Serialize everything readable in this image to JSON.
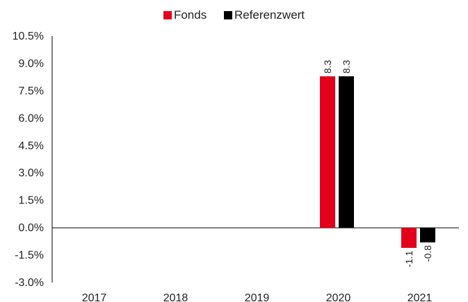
{
  "chart_data": {
    "type": "bar",
    "categories": [
      "2017",
      "2018",
      "2019",
      "2020",
      "2021"
    ],
    "series": [
      {
        "name": "Fonds",
        "color": "#e2001a",
        "values": [
          null,
          null,
          null,
          8.3,
          -1.1
        ],
        "labels": [
          "",
          "",
          "",
          "8.3",
          "-1.1"
        ]
      },
      {
        "name": "Referenzwert",
        "color": "#000000",
        "values": [
          null,
          null,
          null,
          8.3,
          -0.8
        ],
        "labels": [
          "",
          "",
          "",
          "8.3",
          "-0.8"
        ]
      }
    ],
    "ylim": [
      -3.0,
      10.5
    ],
    "yticks": [
      "10.5%",
      "9.0%",
      "7.5%",
      "6.0%",
      "4.5%",
      "3.0%",
      "1.5%",
      "0.0%",
      "-1.5%",
      "-3.0%"
    ],
    "ytick_values": [
      10.5,
      9.0,
      7.5,
      6.0,
      4.5,
      3.0,
      1.5,
      0.0,
      -1.5,
      -3.0
    ],
    "legend_position": "top-center",
    "grid": false
  }
}
